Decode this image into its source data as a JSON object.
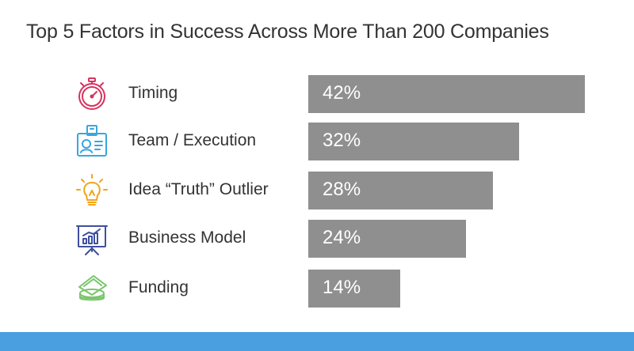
{
  "title": "Top 5 Factors in Success Across More Than 200 Companies",
  "colors": {
    "bar": "#8f8f8f",
    "bar_text": "#ffffff",
    "text": "#333333",
    "footer": "#4a9fe0",
    "timing_icon": "#d6335f",
    "team_icon": "#3aa6dd",
    "idea_icon": "#f2a41c",
    "business_icon": "#3f4fa0",
    "funding_icon": "#79c56b"
  },
  "rows": [
    {
      "label": "Timing",
      "value_label": "42%",
      "icon": "stopwatch-icon"
    },
    {
      "label": "Team / Execution",
      "value_label": "32%",
      "icon": "id-badge-icon"
    },
    {
      "label": "Idea “Truth” Outlier",
      "value_label": "28%",
      "icon": "lightbulb-icon"
    },
    {
      "label": "Business Model",
      "value_label": "24%",
      "icon": "presentation-chart-icon"
    },
    {
      "label": "Funding",
      "value_label": "14%",
      "icon": "money-stack-icon"
    }
  ],
  "chart_data": {
    "type": "bar",
    "orientation": "horizontal",
    "title": "Top 5 Factors in Success Across More Than 200 Companies",
    "categories": [
      "Timing",
      "Team / Execution",
      "Idea “Truth” Outlier",
      "Business Model",
      "Funding"
    ],
    "values": [
      42,
      32,
      28,
      24,
      14
    ],
    "unit": "%",
    "xlim": [
      0,
      42
    ],
    "grid": false,
    "legend": "none"
  }
}
